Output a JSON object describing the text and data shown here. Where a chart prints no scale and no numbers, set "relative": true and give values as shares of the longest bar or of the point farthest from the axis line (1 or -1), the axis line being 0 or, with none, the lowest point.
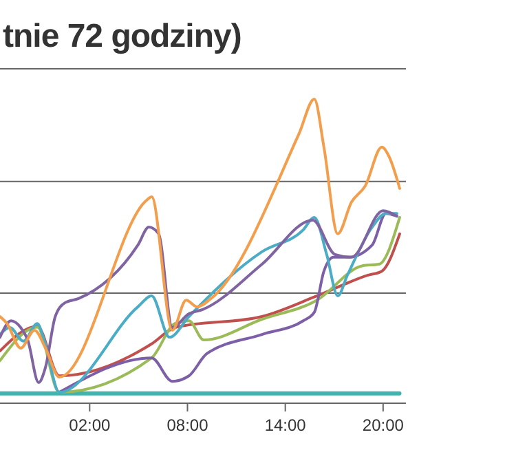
{
  "chart_data": {
    "type": "line",
    "title": "tnie 72 godziny)",
    "relative": true,
    "xlim": [
      -3.5,
      21.4
    ],
    "xticks": [
      {
        "value": 2,
        "label": "02:00"
      },
      {
        "value": 8,
        "label": "08:00"
      },
      {
        "value": 14,
        "label": "14:00"
      },
      {
        "value": 20,
        "label": "20:00"
      }
    ],
    "ref_lines": [
      {
        "axis": "y",
        "value": 0.362,
        "color": "#666666",
        "line_style": "solid"
      },
      {
        "axis": "y",
        "value": 0.729,
        "color": "#666666",
        "line_style": "solid"
      }
    ],
    "marker": "none",
    "line_style": "solid",
    "tick_labels": "x",
    "series": [
      {
        "color": "#3fb5ad",
        "x": [
          -3.5,
          21.0
        ],
        "values": [
          0.032,
          0.032
        ]
      },
      {
        "color": "#c0504d",
        "x": [
          -3.5,
          -1.21,
          0.14,
          5.8,
          7.24,
          12.57,
          15.95,
          19.08,
          19.92,
          21.02
        ],
        "values": [
          0.172,
          0.253,
          0.09,
          0.195,
          0.249,
          0.285,
          0.353,
          0.421,
          0.434,
          0.557
        ]
      },
      {
        "color": "#9bbb59",
        "x": [
          -3.5,
          -1.21,
          0.14,
          5.8,
          7.24,
          8.09,
          9.0,
          12.57,
          15.95,
          18.74,
          19.75,
          21.02
        ],
        "values": [
          0.14,
          0.25,
          0.036,
          0.149,
          0.262,
          0.271,
          0.208,
          0.276,
          0.339,
          0.452,
          0.457,
          0.611
        ]
      },
      {
        "color": "#7c5fa6",
        "x": [
          0.14,
          5.8,
          7.07,
          8.09,
          9.19,
          12.57,
          15.1,
          15.78,
          16.37,
          16.96,
          17.89,
          19.33,
          20.17,
          20.85
        ],
        "values": [
          0.036,
          0.149,
          0.072,
          0.09,
          0.163,
          0.226,
          0.271,
          0.299,
          0.434,
          0.48,
          0.48,
          0.52,
          0.624,
          0.615
        ]
      },
      {
        "color": "#4bacc6",
        "x": [
          -3.5,
          -2.9,
          -2.06,
          -1.21,
          -0.79,
          0.14,
          4.96,
          5.8,
          6.9,
          8.09,
          12.57,
          15.1,
          15.78,
          16.54,
          17.22,
          17.81,
          19.33,
          20.17,
          20.85
        ],
        "values": [
          0.226,
          0.249,
          0.204,
          0.262,
          0.208,
          0.036,
          0.317,
          0.353,
          0.217,
          0.285,
          0.498,
          0.57,
          0.611,
          0.489,
          0.353,
          0.421,
          0.579,
          0.624,
          0.624
        ]
      },
      {
        "color": "#8064a2",
        "x": [
          -3.5,
          -2.82,
          -2.23,
          -1.8,
          -1.13,
          -0.71,
          -0.11,
          0.48,
          1.32,
          4.96,
          5.63,
          6.23,
          7.07,
          8.09,
          8.93,
          12.57,
          15.69,
          17.05,
          18.06,
          20.0,
          20.85
        ],
        "values": [
          0.217,
          0.271,
          0.249,
          0.208,
          0.068,
          0.118,
          0.285,
          0.33,
          0.344,
          0.52,
          0.579,
          0.557,
          0.249,
          0.294,
          0.308,
          0.457,
          0.602,
          0.489,
          0.48,
          0.633,
          0.615
        ]
      },
      {
        "color": "#f29e4c",
        "x": [
          -3.5,
          -3.07,
          -2.23,
          -1.38,
          -0.71,
          0.14,
          5.55,
          5.8,
          7.07,
          7.92,
          8.59,
          9.44,
          14.85,
          15.78,
          16.37,
          17.22,
          18.06,
          18.91,
          19.92,
          20.34,
          21.02
        ],
        "values": [
          0.285,
          0.262,
          0.181,
          0.24,
          0.181,
          0.086,
          0.67,
          0.679,
          0.24,
          0.339,
          0.317,
          0.344,
          0.887,
          1.0,
          0.842,
          0.557,
          0.661,
          0.715,
          0.842,
          0.814,
          0.706
        ]
      }
    ]
  }
}
